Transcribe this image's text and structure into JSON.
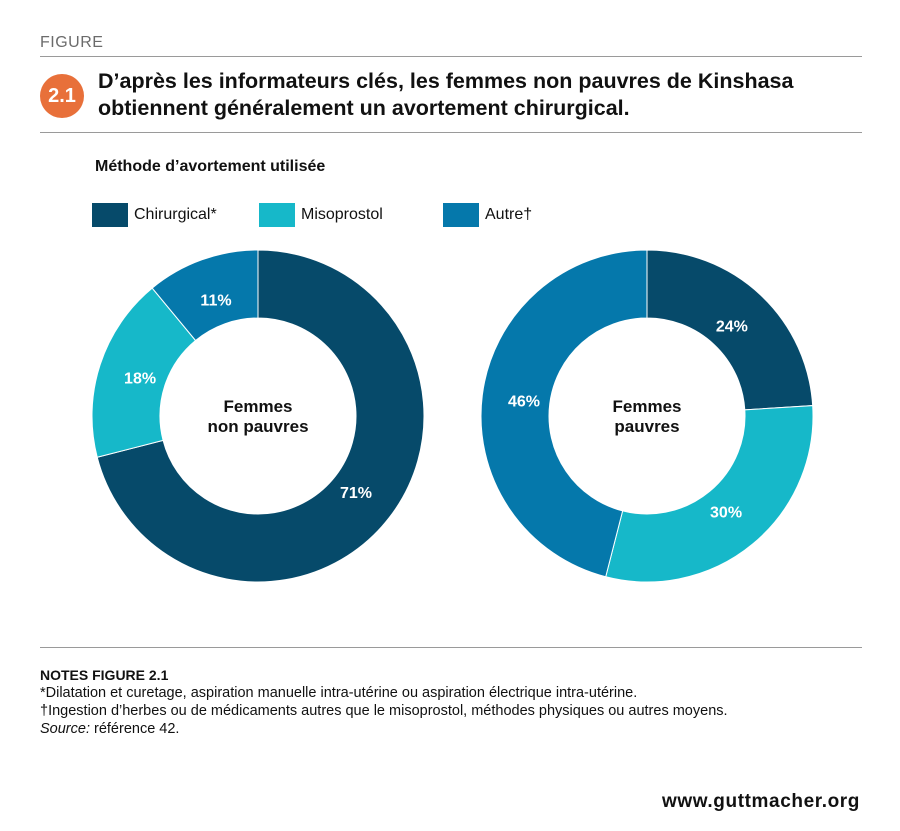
{
  "header": {
    "figure_label": "FIGURE",
    "number": "2.1",
    "title": "D’après les informateurs clés, les femmes non pauvres de Kinshasa obtiennent généralement un avortement chirurgical."
  },
  "colors": {
    "chirurgical": "#064a6a",
    "misoprostol": "#16b8c9",
    "autre": "#0578ab",
    "badge": "#e8703a"
  },
  "chart_data": {
    "type": "pie",
    "subtitle": "Méthode d’avortement utilisée",
    "legend": [
      {
        "key": "chirurgical",
        "label": "Chirurgical*"
      },
      {
        "key": "misoprostol",
        "label": "Misoprostol"
      },
      {
        "key": "autre",
        "label": "Autre†"
      }
    ],
    "charts": [
      {
        "center_label": [
          "Femmes",
          "non pauvres"
        ],
        "slices": [
          {
            "key": "chirurgical",
            "value": 71,
            "label": "71%"
          },
          {
            "key": "misoprostol",
            "value": 18,
            "label": "18%"
          },
          {
            "key": "autre",
            "value": 11,
            "label": "11%"
          }
        ]
      },
      {
        "center_label": [
          "Femmes",
          "pauvres"
        ],
        "slices": [
          {
            "key": "chirurgical",
            "value": 24,
            "label": "24%"
          },
          {
            "key": "misoprostol",
            "value": 30,
            "label": "30%"
          },
          {
            "key": "autre",
            "value": 46,
            "label": "46%"
          }
        ]
      }
    ]
  },
  "notes": {
    "heading": "NOTES FIGURE 2.1",
    "lines": [
      "*Dilatation et curetage, aspiration manuelle intra-utérine ou aspiration électrique intra-utérine.",
      "†Ingestion d’herbes ou de médicaments autres que le misoprostol, méthodes physiques ou autres moyens."
    ],
    "source_label": "Source:",
    "source_text": " référence 42."
  },
  "footer": {
    "url": "www.guttmacher.org"
  }
}
